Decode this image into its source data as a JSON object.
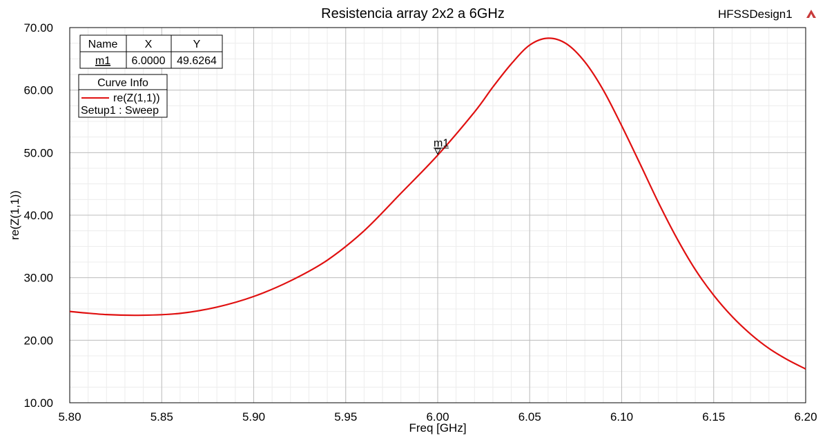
{
  "project": {
    "design_name": "HFSSDesign1",
    "logo_icon": "ansys-logo-icon"
  },
  "marker_table": {
    "headers": [
      "Name",
      "X",
      "Y"
    ],
    "rows": [
      {
        "name": "m1",
        "x": "6.0000",
        "y": "49.6264"
      }
    ]
  },
  "curve_info": {
    "title": "Curve Info",
    "entries": [
      {
        "name": "re(Z(1,1))",
        "setup": "Setup1 : Sweep",
        "color": "#e01010"
      }
    ]
  },
  "chart_data": {
    "type": "line",
    "title": "Resistencia array 2x2 a 6GHz",
    "xlabel": "Freq [GHz]",
    "ylabel": "re(Z(1,1))",
    "xlim": [
      5.8,
      6.2
    ],
    "ylim": [
      10,
      70
    ],
    "x_ticks": [
      "5.80",
      "5.85",
      "5.90",
      "5.95",
      "6.00",
      "6.05",
      "6.10",
      "6.15",
      "6.20"
    ],
    "y_ticks": [
      "10.00",
      "20.00",
      "30.00",
      "40.00",
      "50.00",
      "60.00",
      "70.00"
    ],
    "grid": true,
    "series": [
      {
        "name": "re(Z(1,1))",
        "color": "#e01010",
        "x": [
          5.8,
          5.82,
          5.84,
          5.86,
          5.88,
          5.9,
          5.92,
          5.94,
          5.96,
          5.98,
          6.0,
          6.02,
          6.03,
          6.04,
          6.05,
          6.06,
          6.07,
          6.08,
          6.09,
          6.1,
          6.11,
          6.12,
          6.13,
          6.14,
          6.15,
          6.16,
          6.17,
          6.18,
          6.19,
          6.2
        ],
        "y": [
          24.6,
          24.1,
          24.0,
          24.3,
          25.3,
          27.0,
          29.5,
          32.8,
          37.5,
          43.5,
          49.6,
          56.5,
          60.5,
          64.2,
          67.2,
          68.3,
          67.4,
          64.5,
          60.0,
          54.3,
          48.2,
          42.0,
          36.3,
          31.3,
          27.2,
          23.8,
          21.0,
          18.7,
          16.9,
          15.4
        ]
      }
    ],
    "markers": [
      {
        "name": "m1",
        "x": 6.0,
        "y": 49.6264
      }
    ]
  }
}
